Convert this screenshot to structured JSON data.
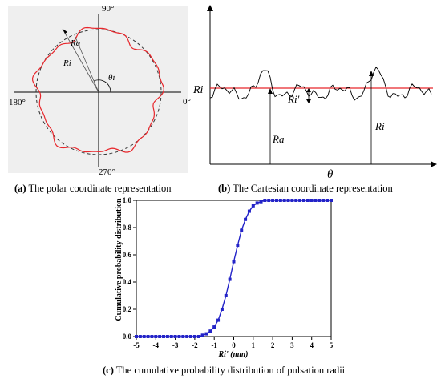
{
  "panel_a": {
    "caption_letter": "(a)",
    "caption_text": " The polar coordinate representation",
    "angle_90": "90°",
    "angle_0": "0°",
    "angle_180": "180°",
    "angle_270": "270°",
    "label_ra": "Ra",
    "label_ri": "Ri",
    "label_theta": "θi",
    "colors": {
      "profile": "#e8262b",
      "background": "#efefef"
    }
  },
  "panel_b": {
    "caption_letter": "(b)",
    "caption_text": " The Cartesian coordinate representation",
    "label_ri_axis": "Ri",
    "label_ri_prime": "Ri'",
    "label_ra": "Ra",
    "label_ri_right": "Ri",
    "label_theta": "θ",
    "colors": {
      "reference_line": "#e8262b",
      "signal": "#000000"
    }
  },
  "panel_c": {
    "caption_letter": "(c)",
    "caption_text": " The cumulative probability distribution of pulsation radii",
    "colors": {
      "series": "#2323c8"
    }
  },
  "chart_data": {
    "type": "line",
    "title": "",
    "xlabel": "Ri' (mm)",
    "ylabel": "Cumulative probability distribution",
    "xlim": [
      -5,
      5
    ],
    "ylim": [
      0,
      1.0
    ],
    "xticks": [
      "-5",
      "-4",
      "-3",
      "-2",
      "-1",
      "0",
      "1",
      "2",
      "3",
      "4",
      "5"
    ],
    "yticks": [
      "0.0",
      "0.2",
      "0.4",
      "0.6",
      "0.8",
      "1.0"
    ],
    "series": [
      {
        "x": [
          -5.0,
          -4.8,
          -4.6,
          -4.4,
          -4.2,
          -4.0,
          -3.8,
          -3.6,
          -3.4,
          -3.2,
          -3.0,
          -2.8,
          -2.6,
          -2.4,
          -2.2,
          -2.0,
          -1.8,
          -1.6,
          -1.4,
          -1.2,
          -1.0,
          -0.8,
          -0.6,
          -0.4,
          -0.2,
          0.0,
          0.2,
          0.4,
          0.6,
          0.8,
          1.0,
          1.2,
          1.4,
          1.6,
          1.8,
          2.0,
          2.2,
          2.4,
          2.6,
          2.8,
          3.0,
          3.2,
          3.4,
          3.6,
          3.8,
          4.0,
          4.2,
          4.4,
          4.6,
          4.8,
          5.0
        ],
        "y": [
          0.0,
          0.0,
          0.0,
          0.0,
          0.0,
          0.0,
          0.0,
          0.0,
          0.0,
          0.0,
          0.0,
          0.0,
          0.0,
          0.0,
          0.0,
          0.0,
          0.0,
          0.01,
          0.02,
          0.04,
          0.07,
          0.12,
          0.2,
          0.3,
          0.42,
          0.55,
          0.67,
          0.78,
          0.86,
          0.92,
          0.96,
          0.98,
          0.99,
          1.0,
          1.0,
          1.0,
          1.0,
          1.0,
          1.0,
          1.0,
          1.0,
          1.0,
          1.0,
          1.0,
          1.0,
          1.0,
          1.0,
          1.0,
          1.0,
          1.0,
          1.0
        ]
      }
    ],
    "grid": false,
    "marker": "square"
  }
}
